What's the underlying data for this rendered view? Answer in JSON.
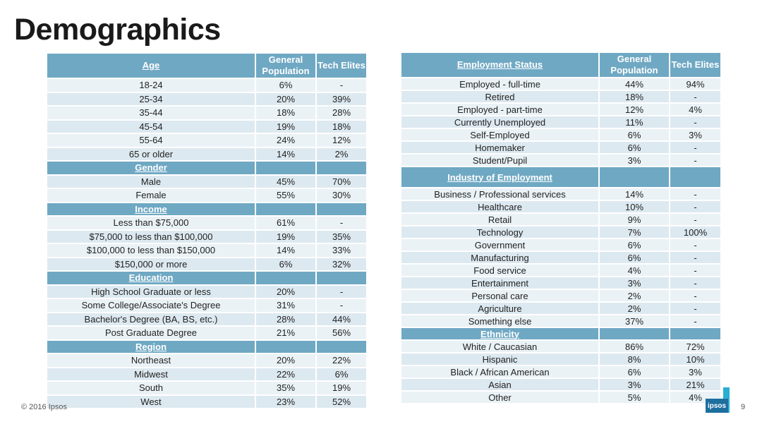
{
  "title": "Demographics",
  "footer": "© 2016 Ipsos",
  "page_number": "9",
  "logo_text": "ipsos",
  "col_general": "General Population",
  "col_tech": "Tech Elites",
  "left_table": {
    "header": "Age",
    "sections": [
      {
        "label": "Age",
        "is_header": true,
        "rows": [
          [
            "18-24",
            "6%",
            "-"
          ],
          [
            "25-34",
            "20%",
            "39%"
          ],
          [
            "35-44",
            "18%",
            "28%"
          ],
          [
            "45-54",
            "19%",
            "18%"
          ],
          [
            "55-64",
            "24%",
            "12%"
          ],
          [
            "65 or older",
            "14%",
            "2%"
          ]
        ]
      },
      {
        "label": "Gender",
        "rows": [
          [
            "Male",
            "45%",
            "70%"
          ],
          [
            "Female",
            "55%",
            "30%"
          ]
        ]
      },
      {
        "label": "Income",
        "rows": [
          [
            "Less than $75,000",
            "61%",
            "-"
          ],
          [
            "$75,000 to less than $100,000",
            "19%",
            "35%"
          ],
          [
            "$100,000 to less than $150,000",
            "14%",
            "33%"
          ],
          [
            "$150,000 or more",
            "6%",
            "32%"
          ]
        ]
      },
      {
        "label": "Education",
        "rows": [
          [
            "High School Graduate or less",
            "20%",
            "-"
          ],
          [
            "Some College/Associate's Degree",
            "31%",
            "-"
          ],
          [
            "Bachelor's Degree (BA, BS, etc.)",
            "28%",
            "44%"
          ],
          [
            "Post Graduate Degree",
            "21%",
            "56%"
          ]
        ]
      },
      {
        "label": "Region",
        "rows": [
          [
            "Northeast",
            "20%",
            "22%"
          ],
          [
            "Midwest",
            "22%",
            "6%"
          ],
          [
            "South",
            "35%",
            "19%"
          ],
          [
            "West",
            "23%",
            "52%"
          ]
        ]
      }
    ]
  },
  "right_table": {
    "header": "Employment Status",
    "sections": [
      {
        "label": "Employment Status",
        "is_header": true,
        "rows": [
          [
            "Employed - full-time",
            "44%",
            "94%"
          ],
          [
            "Retired",
            "18%",
            "-"
          ],
          [
            "Employed - part-time",
            "12%",
            "4%"
          ],
          [
            "Currently Unemployed",
            "11%",
            "-"
          ],
          [
            "Self-Employed",
            "6%",
            "3%"
          ],
          [
            "Homemaker",
            "6%",
            "-"
          ],
          [
            "Student/Pupil",
            "3%",
            "-"
          ]
        ]
      },
      {
        "label": "Industry of Employment",
        "tall": true,
        "rows": [
          [
            "Business / Professional services",
            "14%",
            "-"
          ],
          [
            "Healthcare",
            "10%",
            "-"
          ],
          [
            "Retail",
            "9%",
            "-"
          ],
          [
            "Technology",
            "7%",
            "100%"
          ],
          [
            "Government",
            "6%",
            "-"
          ],
          [
            "Manufacturing",
            "6%",
            "-"
          ],
          [
            "Food service",
            "4%",
            "-"
          ],
          [
            "Entertainment",
            "3%",
            "-"
          ],
          [
            "Personal care",
            "2%",
            "-"
          ],
          [
            "Agriculture",
            "2%",
            "-"
          ],
          [
            "Something else",
            "37%",
            "-"
          ]
        ]
      },
      {
        "label": "Ethnicity",
        "rows": [
          [
            "White / Caucasian",
            "86%",
            "72%"
          ],
          [
            "Hispanic",
            "8%",
            "10%"
          ],
          [
            "Black / African American",
            "6%",
            "3%"
          ],
          [
            "Asian",
            "3%",
            "21%"
          ],
          [
            "Other",
            "5%",
            "4%"
          ]
        ]
      }
    ]
  }
}
